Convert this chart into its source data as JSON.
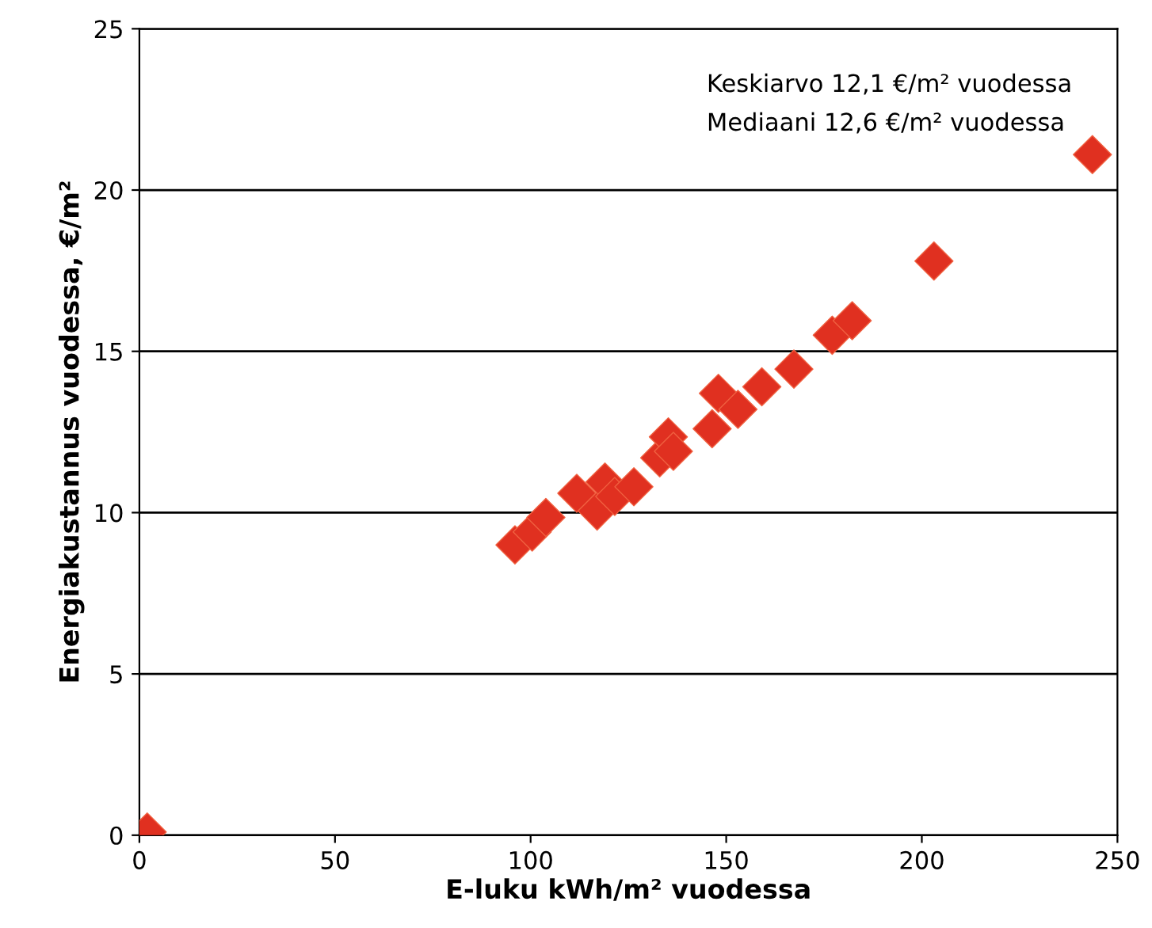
{
  "chart_data": {
    "type": "scatter",
    "xlabel": "E-luku kWh/m² vuodessa",
    "ylabel": "Energiakustannus vuodessa, €/m²",
    "annotations": [
      "Keskiarvo 12,1 €/m² vuodessa",
      "Mediaani 12,6 €/m² vuodessa"
    ],
    "x": [
      2,
      96,
      100.4,
      103.9,
      111.8,
      117,
      119,
      121.5,
      126.4,
      133,
      135.2,
      136.5,
      146.4,
      148,
      153,
      159.1,
      167.3,
      177.1,
      182.2,
      203.1,
      243.6
    ],
    "series": [
      {
        "color": "#e03020",
        "values": [
          0.1,
          9.0,
          9.4,
          9.85,
          10.6,
          10.05,
          10.95,
          10.5,
          10.8,
          11.7,
          12.35,
          11.9,
          12.6,
          13.7,
          13.2,
          13.9,
          14.45,
          15.5,
          15.95,
          17.8,
          21.1
        ]
      }
    ],
    "xlim": [
      0,
      250
    ],
    "xticks": [
      0,
      50,
      100,
      150,
      200,
      250
    ],
    "ylim": [
      0,
      25
    ],
    "yticks": [
      0,
      5,
      10,
      15,
      20,
      25
    ],
    "grid": "y",
    "marker": "diamond"
  }
}
